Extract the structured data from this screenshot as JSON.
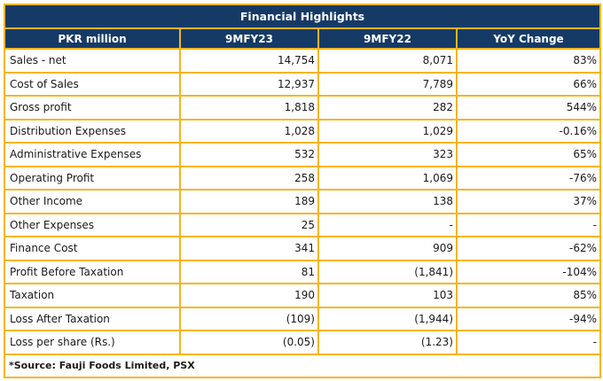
{
  "title": "Financial Highlights",
  "columns": [
    "PKR million",
    "9MFY23",
    "9MFY22",
    "YoY Change"
  ],
  "rows": [
    {
      "label": "Sales - net",
      "fy23": "14,754",
      "fy22": "8,071",
      "yoy": "83%"
    },
    {
      "label": "Cost of Sales",
      "fy23": "12,937",
      "fy22": "7,789",
      "yoy": "66%"
    },
    {
      "label": "Gross profit",
      "fy23": "1,818",
      "fy22": "282",
      "yoy": "544%"
    },
    {
      "label": "Distribution Expenses",
      "fy23": "1,028",
      "fy22": "1,029",
      "yoy": "-0.16%"
    },
    {
      "label": "Administrative Expenses",
      "fy23": "532",
      "fy22": "323",
      "yoy": "65%"
    },
    {
      "label": "Operating Profit",
      "fy23": "258",
      "fy22": "1,069",
      "yoy": "-76%"
    },
    {
      "label": "Other Income",
      "fy23": "189",
      "fy22": "138",
      "yoy": "37%"
    },
    {
      "label": "Other Expenses",
      "fy23": "25",
      "fy22": "-",
      "yoy": "-"
    },
    {
      "label": "Finance Cost",
      "fy23": "341",
      "fy22": "909",
      "yoy": "-62%"
    },
    {
      "label": "Profit Before Taxation",
      "fy23": "81",
      "fy22": "(1,841)",
      "yoy": "-104%"
    },
    {
      "label": "Taxation",
      "fy23": "190",
      "fy22": "103",
      "yoy": "85%"
    },
    {
      "label": "Loss After Taxation",
      "fy23": "(109)",
      "fy22": "(1,944)",
      "yoy": "-94%"
    },
    {
      "label": "Loss per share (Rs.)",
      "fy23": "(0.05)",
      "fy22": "(1.23)",
      "yoy": "-"
    }
  ],
  "source": "*Source: Fauji Foods Limited, PSX",
  "colors": {
    "header_bg": "#163a66",
    "border": "#f5b51f"
  }
}
